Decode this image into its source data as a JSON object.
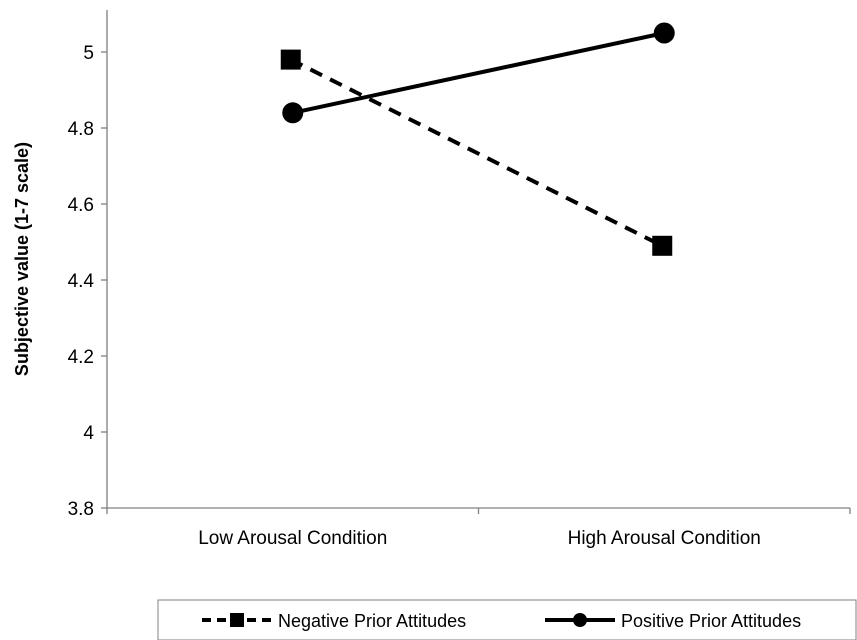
{
  "chart_data": {
    "type": "line",
    "categories": [
      "Low Arousal Condition",
      "High Arousal Condition"
    ],
    "ylabel": "Subjective value (1-7 scale)",
    "xlabel": "",
    "ylim": [
      3.8,
      5.1
    ],
    "yticks": [
      3.8,
      4,
      4.2,
      4.4,
      4.6,
      4.8,
      5
    ],
    "ytick_labels": [
      "3.8",
      "4",
      "4.2",
      "4.4",
      "4.6",
      "4.8",
      "5"
    ],
    "grid": false,
    "legend_position": "bottom",
    "series": [
      {
        "name": "Negative Prior Attitudes",
        "values": [
          4.98,
          4.49
        ],
        "line_style": "dashed",
        "marker": "square",
        "color": "#000000"
      },
      {
        "name": "Positive Prior Attitudes",
        "values": [
          4.84,
          5.05
        ],
        "line_style": "solid",
        "marker": "circle",
        "color": "#000000"
      }
    ]
  }
}
